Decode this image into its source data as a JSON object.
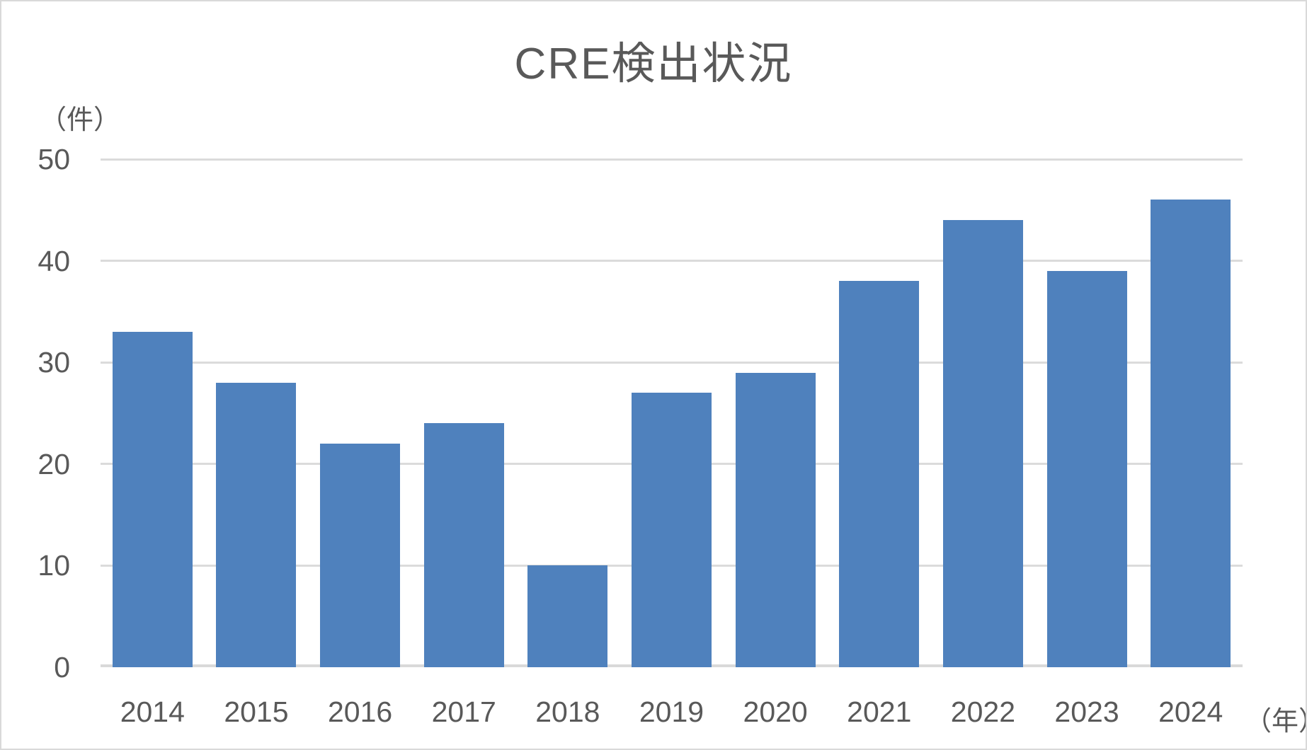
{
  "chart_data": {
    "type": "bar",
    "title": "CRE検出状況",
    "y_unit": "（件）",
    "x_unit": "（年）",
    "categories": [
      "2014",
      "2015",
      "2016",
      "2017",
      "2018",
      "2019",
      "2020",
      "2021",
      "2022",
      "2023",
      "2024"
    ],
    "values": [
      33,
      28,
      22,
      24,
      10,
      27,
      29,
      38,
      44,
      39,
      46
    ],
    "xlabel": "年",
    "ylabel": "件",
    "ylim": [
      0,
      50
    ],
    "yticks": [
      0,
      10,
      20,
      30,
      40,
      50
    ],
    "grid": "horizontal",
    "legend": "none",
    "bar_color": "#4f81bd",
    "gridline_color": "#dbdbdb",
    "text_color": "#595959",
    "background_color": "#ffffff",
    "border_color": "#d9d9d9"
  }
}
